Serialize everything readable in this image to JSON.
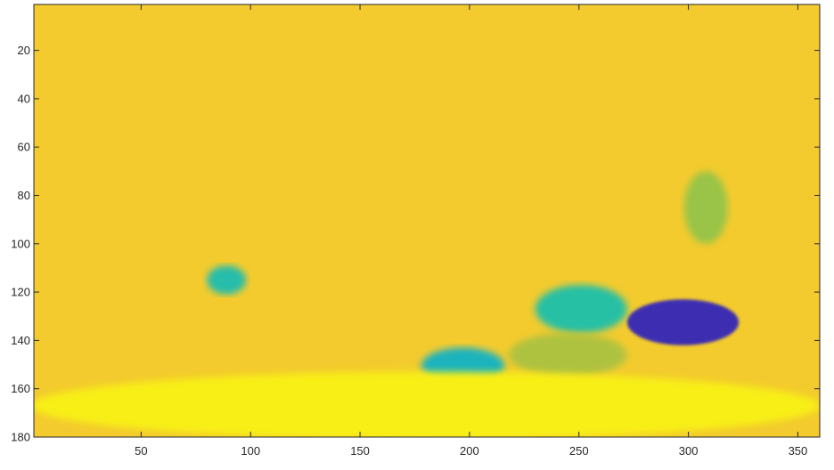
{
  "chart_data": {
    "type": "heatmap",
    "title": "",
    "xlabel": "",
    "ylabel": "",
    "xlim": [
      1,
      360
    ],
    "ylim": [
      1,
      180
    ],
    "y_reversed": true,
    "x_ticks": [
      50,
      100,
      150,
      200,
      250,
      300,
      350
    ],
    "y_ticks": [
      20,
      40,
      60,
      80,
      100,
      120,
      140,
      160,
      180
    ],
    "x_tick_labels": [
      "50",
      "100",
      "150",
      "200",
      "250",
      "300",
      "350"
    ],
    "y_tick_labels": [
      "20",
      "40",
      "60",
      "80",
      "100",
      "120",
      "140",
      "160",
      "180"
    ],
    "colormap": "parula",
    "colormap_stops": [
      "#3e26a8",
      "#2f6cf6",
      "#14a5d8",
      "#27c0a4",
      "#9ec443",
      "#f1b93b",
      "#f9fb0e"
    ],
    "background_level": 0.88,
    "regions": [
      {
        "label": "dark blue blob",
        "x_range": [
          272,
          323
        ],
        "y_range": [
          123,
          142
        ],
        "level": 0.02
      },
      {
        "label": "teal fan upper",
        "x_range": [
          230,
          272
        ],
        "y_range": [
          117,
          137
        ],
        "level": 0.5
      },
      {
        "label": "teal blob",
        "x_range": [
          178,
          216
        ],
        "y_range": [
          143,
          158
        ],
        "level": 0.42
      },
      {
        "label": "green fan lower",
        "x_range": [
          218,
          272
        ],
        "y_range": [
          137,
          155
        ],
        "level": 0.7
      },
      {
        "label": "green upper right",
        "x_range": [
          298,
          318
        ],
        "y_range": [
          70,
          100
        ],
        "level": 0.66
      },
      {
        "label": "cyan patch",
        "x_range": [
          80,
          98
        ],
        "y_range": [
          109,
          121
        ],
        "level": 0.48
      },
      {
        "label": "yellow bottom band",
        "x_range": [
          0,
          360
        ],
        "y_range": [
          153,
          181
        ],
        "level": 0.97
      }
    ]
  }
}
